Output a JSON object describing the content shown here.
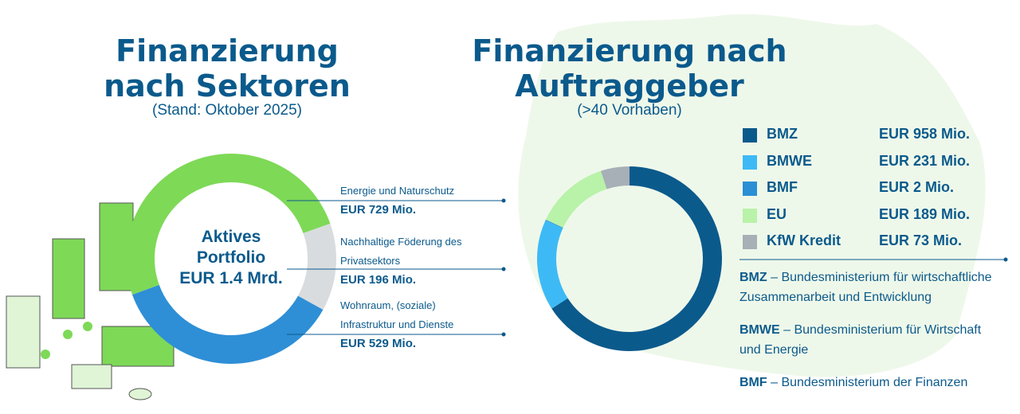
{
  "chart_data": [
    {
      "type": "donut",
      "title": [
        "Finanzierung",
        "nach Sektoren"
      ],
      "subtitle": "(Stand: Oktober 2025)",
      "center_label": [
        "Aktives",
        "Portfolio",
        "EUR 1.4 Mrd."
      ],
      "categories": [
        "Energie und Naturschutz",
        "Nachhaltige Föderung des Privatsektors",
        "Wohnraum, (soziale) Infrastruktur und Dienste"
      ],
      "values": [
        729,
        196,
        529
      ],
      "value_labels": [
        "EUR 729 Mio.",
        "EUR 196 Mio.",
        "EUR 529 Mio."
      ],
      "colors": [
        "#7ed957",
        "#d8dcdf",
        "#2e8fd6"
      ]
    },
    {
      "type": "donut",
      "title": [
        "Finanzierung nach",
        "Auftraggeber"
      ],
      "subtitle": "(>40 Vorhaben)",
      "categories": [
        "BMZ",
        "BMWE",
        "BMF",
        "EU",
        "KfW Kredit"
      ],
      "values": [
        958,
        231,
        2,
        189,
        73
      ],
      "value_labels": [
        "EUR 958 Mio.",
        "EUR 231 Mio.",
        "EUR 2 Mio.",
        "EUR 189 Mio.",
        "EUR 73 Mio."
      ],
      "colors": [
        "#0b5a8c",
        "#3dbaf6",
        "#2a8fd4",
        "#b9f2a9",
        "#a7afb7"
      ]
    }
  ],
  "definitions": [
    {
      "abbr": "BMZ",
      "text": "– Bundesministerium für wirtschaftliche Zusammenarbeit und Entwicklung"
    },
    {
      "abbr": "BMWE",
      "text": "– Bundesministerium für Wirtschaft und Energie"
    },
    {
      "abbr": "BMF",
      "text": "– Bundesministerium der Finanzen"
    }
  ]
}
